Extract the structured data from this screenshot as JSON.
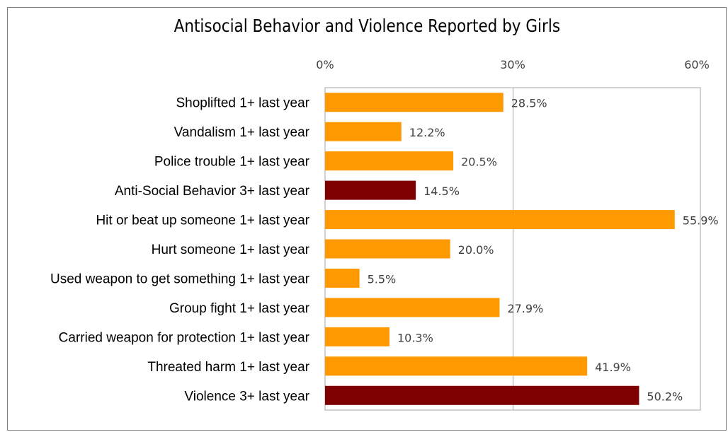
{
  "chart_data": {
    "type": "bar",
    "orientation": "horizontal",
    "title": "Antisocial Behavior and Violence Reported by Girls",
    "xlabel": "",
    "ylabel": "",
    "xlim": [
      0,
      60
    ],
    "ticks": [
      "0%",
      "30%",
      "60%"
    ],
    "tick_values": [
      0,
      30,
      60
    ],
    "axis_position": "top",
    "grid": true,
    "legend": "none",
    "categories": [
      "Shoplifted 1+ last year",
      "Vandalism 1+ last year",
      "Police trouble 1+ last year",
      "Anti-Social Behavior 3+ last year",
      "Hit or beat up someone 1+ last year",
      "Hurt someone 1+ last year",
      "Used weapon to get something 1+ last year",
      "Group fight 1+ last year",
      "Carried weapon for protection 1+ last year",
      "Threated harm 1+ last year",
      "Violence 3+ last year"
    ],
    "values": [
      28.5,
      12.2,
      20.5,
      14.5,
      55.9,
      20.0,
      5.5,
      27.9,
      10.3,
      41.9,
      50.2
    ],
    "value_labels": [
      "28.5%",
      "12.2%",
      "20.5%",
      "14.5%",
      "55.9%",
      "20.0%",
      "5.5%",
      "27.9%",
      "10.3%",
      "41.9%",
      "50.2%"
    ],
    "highlight": [
      false,
      false,
      false,
      true,
      false,
      false,
      false,
      false,
      false,
      false,
      true
    ],
    "colors": {
      "bar": "#ff9900",
      "highlight": "#7f0000",
      "gridline": "#a6a6a6",
      "plot_border": "#a6a6a6"
    }
  }
}
